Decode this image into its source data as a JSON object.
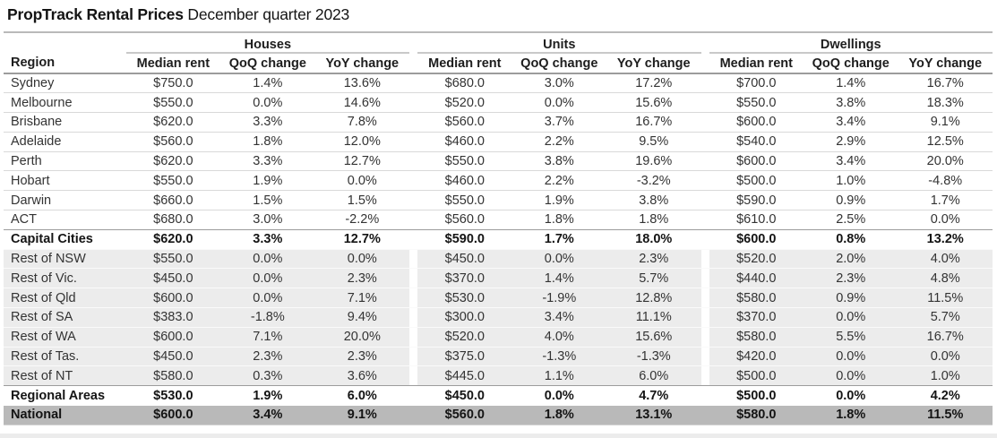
{
  "title": {
    "brand": "PropTrack Rental Prices",
    "period": "December quarter 2023"
  },
  "chart_data": {
    "type": "table",
    "title": "PropTrack Rental Prices",
    "subtitle": "December quarter 2023",
    "region_header": "Region",
    "groups": [
      {
        "label": "Houses",
        "columns": [
          "Median rent",
          "QoQ change",
          "YoY change"
        ]
      },
      {
        "label": "Units",
        "columns": [
          "Median rent",
          "QoQ change",
          "YoY change"
        ]
      },
      {
        "label": "Dwellings",
        "columns": [
          "Median rent",
          "QoQ change",
          "YoY change"
        ]
      }
    ],
    "rows": [
      {
        "region": "Sydney",
        "variant": "default",
        "values": [
          "$750.0",
          "1.4%",
          "13.6%",
          "$680.0",
          "3.0%",
          "17.2%",
          "$700.0",
          "1.4%",
          "16.7%"
        ]
      },
      {
        "region": "Melbourne",
        "variant": "default",
        "values": [
          "$550.0",
          "0.0%",
          "14.6%",
          "$520.0",
          "0.0%",
          "15.6%",
          "$550.0",
          "3.8%",
          "18.3%"
        ]
      },
      {
        "region": "Brisbane",
        "variant": "default",
        "values": [
          "$620.0",
          "3.3%",
          "7.8%",
          "$560.0",
          "3.7%",
          "16.7%",
          "$600.0",
          "3.4%",
          "9.1%"
        ]
      },
      {
        "region": "Adelaide",
        "variant": "default",
        "values": [
          "$560.0",
          "1.8%",
          "12.0%",
          "$460.0",
          "2.2%",
          "9.5%",
          "$540.0",
          "2.9%",
          "12.5%"
        ]
      },
      {
        "region": "Perth",
        "variant": "default",
        "values": [
          "$620.0",
          "3.3%",
          "12.7%",
          "$550.0",
          "3.8%",
          "19.6%",
          "$600.0",
          "3.4%",
          "20.0%"
        ]
      },
      {
        "region": "Hobart",
        "variant": "default",
        "values": [
          "$550.0",
          "1.9%",
          "0.0%",
          "$460.0",
          "2.2%",
          "-3.2%",
          "$500.0",
          "1.0%",
          "-4.8%"
        ]
      },
      {
        "region": "Darwin",
        "variant": "default",
        "values": [
          "$660.0",
          "1.5%",
          "1.5%",
          "$550.0",
          "1.9%",
          "3.8%",
          "$590.0",
          "0.9%",
          "1.7%"
        ]
      },
      {
        "region": "ACT",
        "variant": "default",
        "values": [
          "$680.0",
          "3.0%",
          "-2.2%",
          "$560.0",
          "1.8%",
          "1.8%",
          "$610.0",
          "2.5%",
          "0.0%"
        ]
      },
      {
        "region": "Capital Cities",
        "variant": "summary",
        "values": [
          "$620.0",
          "3.3%",
          "12.7%",
          "$590.0",
          "1.7%",
          "18.0%",
          "$600.0",
          "0.8%",
          "13.2%"
        ]
      },
      {
        "region": "Rest of NSW",
        "variant": "regional",
        "values": [
          "$550.0",
          "0.0%",
          "0.0%",
          "$450.0",
          "0.0%",
          "2.3%",
          "$520.0",
          "2.0%",
          "4.0%"
        ]
      },
      {
        "region": "Rest of Vic.",
        "variant": "regional",
        "values": [
          "$450.0",
          "0.0%",
          "2.3%",
          "$370.0",
          "1.4%",
          "5.7%",
          "$440.0",
          "2.3%",
          "4.8%"
        ]
      },
      {
        "region": "Rest of Qld",
        "variant": "regional",
        "values": [
          "$600.0",
          "0.0%",
          "7.1%",
          "$530.0",
          "-1.9%",
          "12.8%",
          "$580.0",
          "0.9%",
          "11.5%"
        ]
      },
      {
        "region": "Rest of SA",
        "variant": "regional",
        "values": [
          "$383.0",
          "-1.8%",
          "9.4%",
          "$300.0",
          "3.4%",
          "11.1%",
          "$370.0",
          "0.0%",
          "5.7%"
        ]
      },
      {
        "region": "Rest of WA",
        "variant": "regional",
        "values": [
          "$600.0",
          "7.1%",
          "20.0%",
          "$520.0",
          "4.0%",
          "15.6%",
          "$580.0",
          "5.5%",
          "16.7%"
        ]
      },
      {
        "region": "Rest of Tas.",
        "variant": "regional",
        "values": [
          "$450.0",
          "2.3%",
          "2.3%",
          "$375.0",
          "-1.3%",
          "-1.3%",
          "$420.0",
          "0.0%",
          "0.0%"
        ]
      },
      {
        "region": "Rest of NT",
        "variant": "regional",
        "values": [
          "$580.0",
          "0.3%",
          "3.6%",
          "$445.0",
          "1.1%",
          "6.0%",
          "$500.0",
          "0.0%",
          "1.0%"
        ]
      },
      {
        "region": "Regional Areas",
        "variant": "summary",
        "values": [
          "$530.0",
          "1.9%",
          "6.0%",
          "$450.0",
          "0.0%",
          "4.7%",
          "$500.0",
          "0.0%",
          "4.2%"
        ]
      },
      {
        "region": "National",
        "variant": "national",
        "values": [
          "$600.0",
          "3.4%",
          "9.1%",
          "$560.0",
          "1.8%",
          "13.1%",
          "$580.0",
          "1.8%",
          "11.5%"
        ]
      }
    ]
  },
  "colors": {
    "text": "#2e2e2e",
    "title_text": "#141414",
    "shaded_row_bg": "#ececec",
    "national_row_bg": "#b9b9b9"
  }
}
